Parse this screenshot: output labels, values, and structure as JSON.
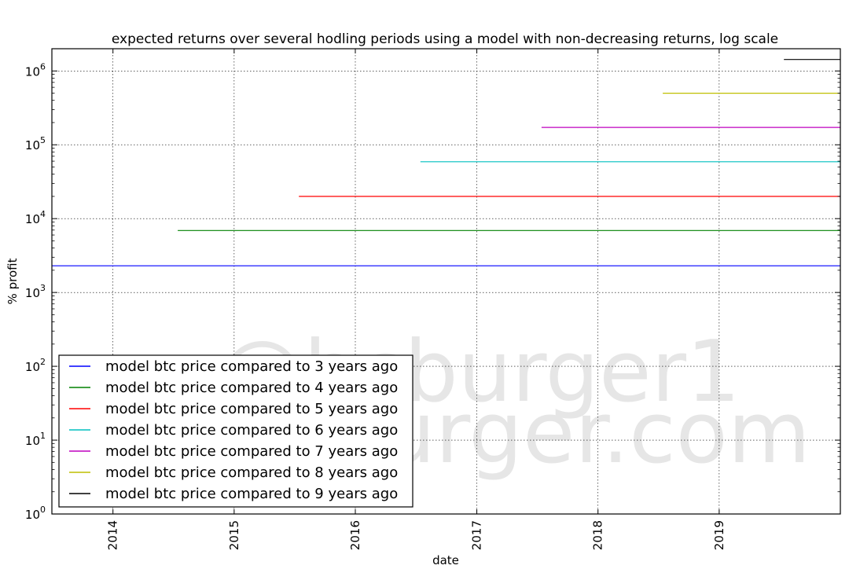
{
  "watermark": {
    "line1": "@hcburger1",
    "line2": "hcburger.com"
  },
  "chart_data": {
    "type": "line",
    "title": "expected returns over several hodling periods using a model with non-decreasing returns, log scale",
    "xlabel": "date",
    "ylabel": "% profit",
    "xlim": [
      "2013-07-01",
      "2020-01-01"
    ],
    "ylim": [
      1,
      2000000
    ],
    "yscale": "log",
    "grid": true,
    "legend_position": "lower-left",
    "x_ticks": [
      "2014",
      "2015",
      "2016",
      "2017",
      "2018",
      "2019"
    ],
    "y_ticks": [
      {
        "value": 1,
        "base": "10",
        "exp": "0"
      },
      {
        "value": 10,
        "base": "10",
        "exp": "1"
      },
      {
        "value": 100,
        "base": "10",
        "exp": "2"
      },
      {
        "value": 1000,
        "base": "10",
        "exp": "3"
      },
      {
        "value": 10000,
        "base": "10",
        "exp": "4"
      },
      {
        "value": 100000,
        "base": "10",
        "exp": "5"
      },
      {
        "value": 1000000,
        "base": "10",
        "exp": "6"
      }
    ],
    "series": [
      {
        "name": "model btc price compared to 3 years ago",
        "color": "#0000ff",
        "x": [
          "2013-07-01",
          "2020-01-01"
        ],
        "y": [
          2300,
          2300
        ]
      },
      {
        "name": "model btc price compared to 4 years ago",
        "color": "#008000",
        "x": [
          "2014-07-15",
          "2020-01-01"
        ],
        "y": [
          6900,
          6900
        ]
      },
      {
        "name": "model btc price compared to 5 years ago",
        "color": "#ff0000",
        "x": [
          "2015-07-15",
          "2020-01-01"
        ],
        "y": [
          20000,
          20000
        ]
      },
      {
        "name": "model btc price compared to 6 years ago",
        "color": "#00bfbf",
        "x": [
          "2016-07-15",
          "2020-01-01"
        ],
        "y": [
          59000,
          59000
        ]
      },
      {
        "name": "model btc price compared to 7 years ago",
        "color": "#bf00bf",
        "x": [
          "2017-07-15",
          "2020-01-01"
        ],
        "y": [
          172000,
          172000
        ]
      },
      {
        "name": "model btc price compared to 8 years ago",
        "color": "#bfbf00",
        "x": [
          "2018-07-15",
          "2020-01-01"
        ],
        "y": [
          500000,
          500000
        ]
      },
      {
        "name": "model btc price compared to 9 years ago",
        "color": "#000000",
        "x": [
          "2019-07-15",
          "2020-01-01"
        ],
        "y": [
          1430000,
          1430000
        ]
      }
    ]
  }
}
